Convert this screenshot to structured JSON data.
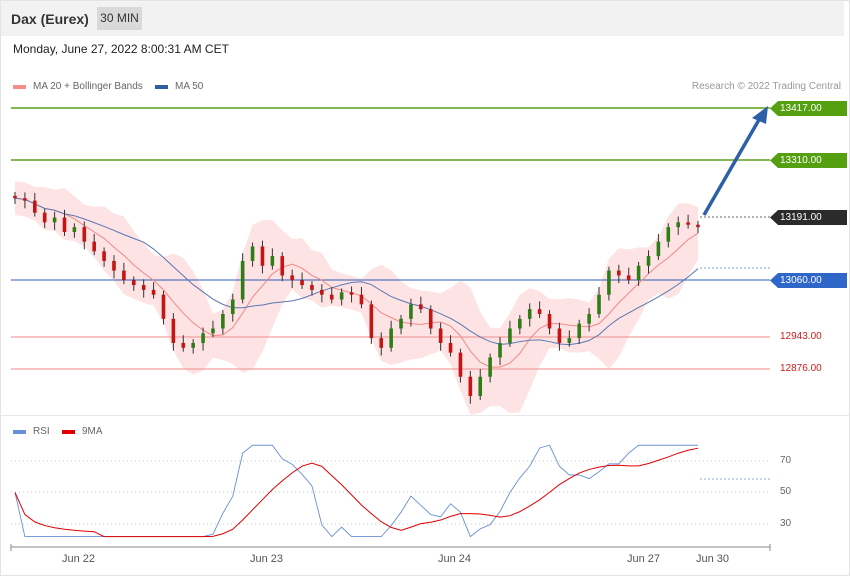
{
  "header": {
    "title": "Dax (Eurex)",
    "timeframe": "30 MIN"
  },
  "datetime": "Monday, June 27, 2022 8:00:31 AM CET",
  "legend": {
    "ma20": {
      "label": "MA 20 + Bollinger Bands",
      "color": "#f58c8c"
    },
    "ma50": {
      "label": "MA 50",
      "color": "#2f5d9f"
    }
  },
  "copyright": "Research © 2022 Trading Central",
  "levels": {
    "r2": "13417.00",
    "r1": "13310.00",
    "last": "13191.00",
    "pivot": "13060.00",
    "s1": "12943.00",
    "s2": "12876.00"
  },
  "rsi": {
    "legend_rsi": "RSI",
    "legend_ma": "9MA",
    "color_rsi": "#6b8fd6",
    "color_ma": "#e00000",
    "ticks": [
      "70",
      "50",
      "30"
    ]
  },
  "xaxis": {
    "labels": [
      "Jun 22",
      "Jun 23",
      "Jun 24",
      "Jun 27",
      "Jun 30"
    ]
  },
  "chart_data": {
    "type": "candlestick",
    "x_labels": [
      "Jun 22",
      "Jun 23",
      "Jun 24",
      "Jun 27",
      "Jun 30"
    ],
    "y_levels": [
      13417,
      13310,
      13191,
      13060,
      12943,
      12876
    ],
    "close_approx": [
      13230,
      13225,
      13200,
      13180,
      13190,
      13160,
      13170,
      13140,
      13120,
      13100,
      13080,
      13060,
      13050,
      13040,
      13030,
      12980,
      12930,
      12920,
      12930,
      12950,
      12960,
      12990,
      13020,
      13100,
      13130,
      13090,
      13110,
      13070,
      13060,
      13050,
      13040,
      13030,
      13020,
      13035,
      13030,
      13010,
      12940,
      12920,
      12960,
      12980,
      13010,
      13000,
      12960,
      12930,
      12910,
      12860,
      12820,
      12860,
      12900,
      12930,
      12960,
      12980,
      13000,
      12990,
      12960,
      12930,
      12940,
      12970,
      12990,
      13030,
      13080,
      13070,
      13060,
      13090,
      13110,
      13140,
      13170,
      13180,
      13175,
      13170
    ],
    "forecast_target": 13417,
    "rsi_range": [
      0,
      100
    ],
    "rsi_levels": [
      70,
      50,
      30
    ]
  }
}
